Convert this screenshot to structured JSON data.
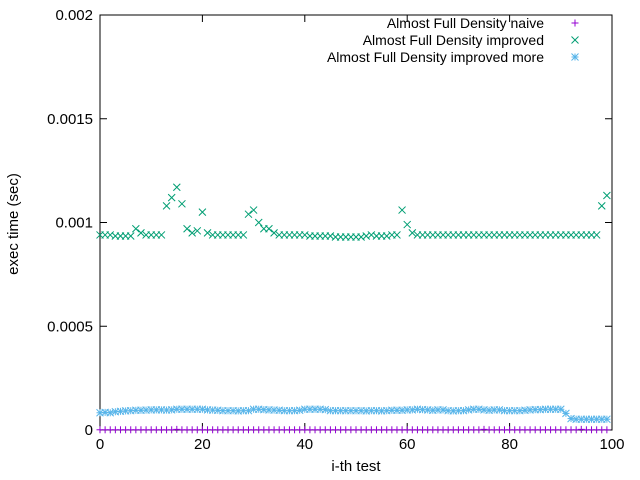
{
  "chart_data": {
    "type": "scatter",
    "xlabel": "i-th test",
    "ylabel": "exec time (sec)",
    "xlim": [
      0,
      100
    ],
    "ylim": [
      0,
      0.002
    ],
    "x_ticks": [
      0,
      20,
      40,
      60,
      80,
      100
    ],
    "x_tick_labels": [
      "0",
      "20",
      "40",
      "60",
      "80",
      "100"
    ],
    "y_ticks": [
      0,
      0.0005,
      0.001,
      0.0015,
      0.002
    ],
    "y_tick_labels": [
      "0",
      "0.0005",
      "0.001",
      "0.0015",
      "0.002"
    ],
    "grid": false,
    "legend_position": "top-right",
    "x": [
      0,
      1,
      2,
      3,
      4,
      5,
      6,
      7,
      8,
      9,
      10,
      11,
      12,
      13,
      14,
      15,
      16,
      17,
      18,
      19,
      20,
      21,
      22,
      23,
      24,
      25,
      26,
      27,
      28,
      29,
      30,
      31,
      32,
      33,
      34,
      35,
      36,
      37,
      38,
      39,
      40,
      41,
      42,
      43,
      44,
      45,
      46,
      47,
      48,
      49,
      50,
      51,
      52,
      53,
      54,
      55,
      56,
      57,
      58,
      59,
      60,
      61,
      62,
      63,
      64,
      65,
      66,
      67,
      68,
      69,
      70,
      71,
      72,
      73,
      74,
      75,
      76,
      77,
      78,
      79,
      80,
      81,
      82,
      83,
      84,
      85,
      86,
      87,
      88,
      89,
      90,
      91,
      92,
      93,
      94,
      95,
      96,
      97,
      98,
      99
    ],
    "series": [
      {
        "name": "Almost Full Density naive",
        "marker": "plus",
        "color": "#9400d3",
        "values": [
          1e-06,
          1e-06,
          1e-06,
          1e-06,
          1e-06,
          1e-06,
          1e-06,
          1e-06,
          1e-06,
          1e-06,
          1e-06,
          1e-06,
          1e-06,
          1e-06,
          1e-06,
          3e-06,
          1e-06,
          1e-06,
          1e-06,
          1e-06,
          1e-06,
          1e-06,
          1e-06,
          1e-06,
          1e-06,
          1e-06,
          1e-06,
          1e-06,
          1e-06,
          1e-06,
          1e-06,
          1e-06,
          1e-06,
          1e-06,
          1e-06,
          1e-06,
          1e-06,
          1e-06,
          1e-06,
          1e-06,
          1e-06,
          1e-06,
          1e-06,
          1e-06,
          1e-06,
          1e-06,
          1e-06,
          1e-06,
          1e-06,
          1e-06,
          1e-06,
          1e-06,
          1e-06,
          1e-06,
          1e-06,
          1e-06,
          1e-06,
          1e-06,
          1e-06,
          1e-06,
          1e-06,
          1e-06,
          1e-06,
          1e-06,
          1e-06,
          1e-06,
          1e-06,
          1e-06,
          1e-06,
          1e-06,
          1e-06,
          1e-06,
          1e-06,
          1e-06,
          1e-06,
          3e-06,
          1e-06,
          1e-06,
          1e-06,
          1e-06,
          1e-06,
          1e-06,
          1e-06,
          1e-06,
          1e-06,
          1e-06,
          1e-06,
          1e-06,
          1e-06,
          1e-06,
          1e-06,
          1e-06,
          1e-06,
          1e-06,
          3e-06,
          1e-06,
          1e-06,
          1e-06,
          1e-06,
          1e-06
        ]
      },
      {
        "name": "Almost Full Density improved",
        "marker": "cross",
        "color": "#009e73",
        "values": [
          0.00094,
          0.00094,
          0.00094,
          0.000935,
          0.000935,
          0.000935,
          0.000935,
          0.00097,
          0.00095,
          0.00094,
          0.00094,
          0.00094,
          0.00094,
          0.00108,
          0.00112,
          0.00117,
          0.00109,
          0.00097,
          0.00095,
          0.00096,
          0.00105,
          0.00095,
          0.00094,
          0.00094,
          0.00094,
          0.00094,
          0.00094,
          0.00094,
          0.00094,
          0.00104,
          0.00106,
          0.001,
          0.00097,
          0.00097,
          0.00095,
          0.00094,
          0.00094,
          0.00094,
          0.00094,
          0.00094,
          0.00094,
          0.000935,
          0.000935,
          0.000935,
          0.000935,
          0.000935,
          0.00093,
          0.00093,
          0.00093,
          0.00093,
          0.00093,
          0.00093,
          0.000935,
          0.00094,
          0.000935,
          0.000935,
          0.000935,
          0.00094,
          0.00094,
          0.00106,
          0.00099,
          0.00095,
          0.00094,
          0.00094,
          0.00094,
          0.00094,
          0.00094,
          0.00094,
          0.00094,
          0.00094,
          0.00094,
          0.00094,
          0.00094,
          0.00094,
          0.00094,
          0.00094,
          0.00094,
          0.00094,
          0.00094,
          0.00094,
          0.00094,
          0.00094,
          0.00094,
          0.00094,
          0.00094,
          0.00094,
          0.00094,
          0.00094,
          0.00094,
          0.00094,
          0.00094,
          0.00094,
          0.00094,
          0.00094,
          0.00094,
          0.00094,
          0.00094,
          0.00094,
          0.00108,
          0.00113
        ]
      },
      {
        "name": "Almost Full Density improved more",
        "marker": "star",
        "color": "#56b4e9",
        "values": [
          8.3e-05,
          8.5e-05,
          8.3e-05,
          8.8e-05,
          9e-05,
          9.2e-05,
          9.3e-05,
          9.5e-05,
          9.5e-05,
          9.6e-05,
          9.7e-05,
          9.7e-05,
          9.7e-05,
          9.6e-05,
          9.7e-05,
          0.0001,
          0.0001,
          0.0001,
          0.0001,
          0.0001,
          0.0001,
          9.7e-05,
          9.6e-05,
          9.5e-05,
          9.3e-05,
          9.3e-05,
          9.3e-05,
          9.2e-05,
          9.3e-05,
          9.3e-05,
          0.0001,
          0.0001,
          9.8e-05,
          9.7e-05,
          9.6e-05,
          9.5e-05,
          9.3e-05,
          9.3e-05,
          9.3e-05,
          9.5e-05,
          0.0001,
          0.0001,
          0.0001,
          0.0001,
          9.8e-05,
          9.3e-05,
          9.3e-05,
          9.3e-05,
          9.3e-05,
          9.3e-05,
          9.3e-05,
          9.3e-05,
          9.2e-05,
          9.3e-05,
          9.3e-05,
          9.2e-05,
          9.3e-05,
          9.5e-05,
          9.5e-05,
          9.5e-05,
          9.7e-05,
          9.7e-05,
          0.0001,
          9.8e-05,
          9.7e-05,
          9.5e-05,
          9.7e-05,
          9.7e-05,
          9.3e-05,
          9.2e-05,
          9.3e-05,
          9.3e-05,
          9.7e-05,
          0.0001,
          0.0001,
          9.7e-05,
          9.5e-05,
          9.7e-05,
          9.7e-05,
          9.3e-05,
          9.3e-05,
          9.3e-05,
          9.3e-05,
          9.5e-05,
          9.7e-05,
          9.8e-05,
          9.8e-05,
          0.0001,
          0.0001,
          0.0001,
          0.0001,
          8e-05,
          5.5e-05,
          5.2e-05,
          5.2e-05,
          5.2e-05,
          5.2e-05,
          5.2e-05,
          5.2e-05,
          5.2e-05
        ]
      }
    ]
  }
}
